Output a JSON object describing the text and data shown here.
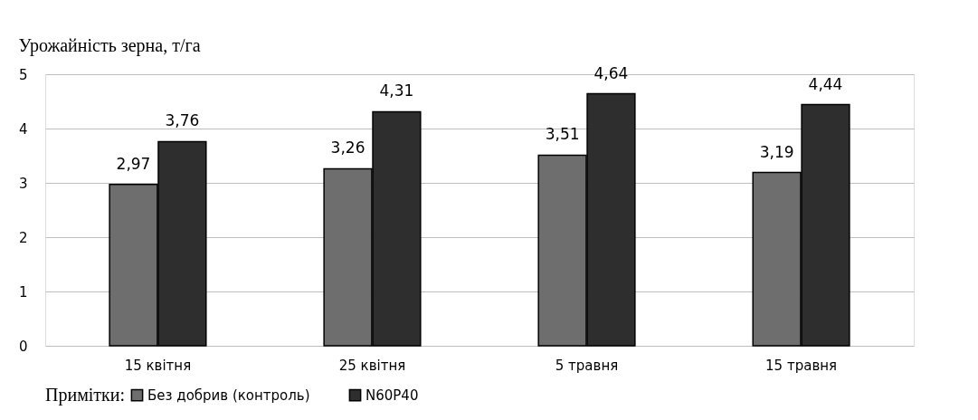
{
  "chart_data": {
    "type": "bar",
    "ylabel": "Урожайність зерна, т/га",
    "legend_title": "Примітки:",
    "categories": [
      "15 квітня",
      "25 квітня",
      "5 травня",
      "15 травня"
    ],
    "series": [
      {
        "name": "Без добрив (контроль)",
        "color": "#6e6e6e",
        "values": [
          2.97,
          3.26,
          3.51,
          3.19
        ],
        "value_labels": [
          "2,97",
          "3,26",
          "3,51",
          "3,19"
        ]
      },
      {
        "name": "N60P40",
        "color": "#2e2e2e",
        "values": [
          3.76,
          4.31,
          4.64,
          4.44
        ],
        "value_labels": [
          "3,76",
          "4,31",
          "4,64",
          "4,44"
        ]
      }
    ],
    "ylim": [
      0,
      5
    ],
    "yticks": [
      0,
      1,
      2,
      3,
      4,
      5
    ],
    "grid": "y",
    "legend": "bottom"
  }
}
